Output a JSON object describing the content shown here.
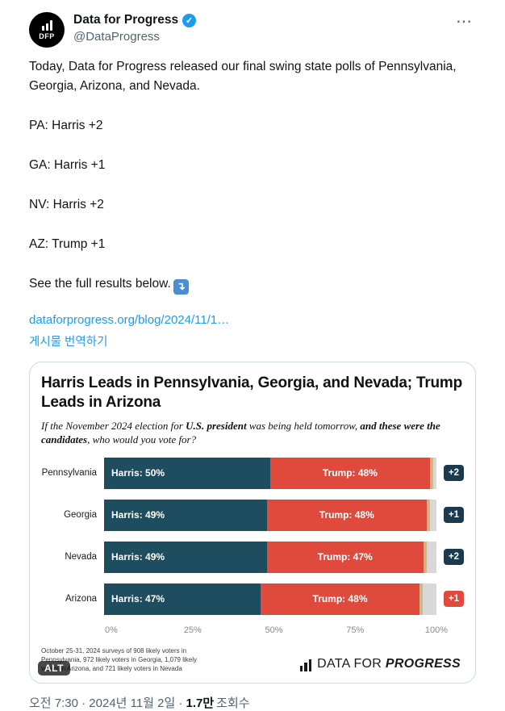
{
  "header": {
    "display_name": "Data for Progress",
    "handle": "@DataProgress",
    "avatar_label": "DFP"
  },
  "icons": {
    "verified": "✓",
    "more": "⋯",
    "arrow_emoji": "↴",
    "alt_badge": "ALT"
  },
  "tweet": {
    "intro": "Today, Data for Progress released our final swing state polls of Pennsylvania, Georgia, Arizona, and Nevada.",
    "poll_lines": [
      "PA: Harris +2",
      "GA: Harris +1",
      "NV: Harris +2",
      "AZ: Trump +1"
    ],
    "see_more": "See the full results below.",
    "link": "dataforprogress.org/blog/2024/11/1…",
    "translate": "게시물 번역하기"
  },
  "card": {
    "subtitle_segments": [
      {
        "text": "If the November 2024 election for ",
        "bold": false
      },
      {
        "text": "U.S. president",
        "bold": true
      },
      {
        "text": " was being held tomorrow, ",
        "bold": false
      },
      {
        "text": "and these were the candidates",
        "bold": true
      },
      {
        "text": ", who would you vote for?",
        "bold": false
      }
    ],
    "footnote_lines": [
      "October 25-31, 2024 surveys of 908 likely voters in",
      "Pennsylvania, 972 likely voters in Georgia, 1,079 likely",
      "voters in Arizona, and 721 likely voters in Nevada"
    ],
    "brand_prefix": "DATA FOR",
    "brand_suffix": "PROGRESS"
  },
  "chart_data": {
    "type": "bar",
    "orientation": "horizontal",
    "title": "Harris Leads in Pennsylvania, Georgia, and Nevada; Trump Leads in Arizona",
    "question": "If the November 2024 election for U.S. president was being held tomorrow, and these were the candidates, who would you vote for?",
    "categories": [
      "Pennsylvania",
      "Georgia",
      "Nevada",
      "Arizona"
    ],
    "rows": [
      {
        "state": "Pennsylvania",
        "harris": 50,
        "trump": 48,
        "other": 1,
        "undecided": 1,
        "margin": "+2",
        "leader": "Harris"
      },
      {
        "state": "Georgia",
        "harris": 49,
        "trump": 48,
        "other": 1,
        "undecided": 2,
        "margin": "+1",
        "leader": "Harris"
      },
      {
        "state": "Nevada",
        "harris": 49,
        "trump": 47,
        "other": 1,
        "undecided": 3,
        "margin": "+2",
        "leader": "Harris"
      },
      {
        "state": "Arizona",
        "harris": 47,
        "trump": 48,
        "other": 1,
        "undecided": 4,
        "margin": "+1",
        "leader": "Trump"
      }
    ],
    "colors": {
      "harris": "#1f4d60",
      "trump": "#df4a3c",
      "other": "#cbb98c",
      "undecided": "#d8d8d8",
      "harris_badge": "#1c3a4d",
      "trump_badge": "#df4a3c"
    },
    "x_ticks": [
      {
        "label": "0%",
        "pos": 0
      },
      {
        "label": "25%",
        "pos": 25
      },
      {
        "label": "50%",
        "pos": 50
      },
      {
        "label": "75%",
        "pos": 75
      },
      {
        "label": "100%",
        "pos": 100
      }
    ],
    "xlim": [
      0,
      100
    ],
    "legend_position": "none",
    "grid": false
  },
  "footer": {
    "time_date": "오전 7:30 · 2024년 11월 2일 ·",
    "views_count": "1.7만",
    "views_label": "조회수"
  }
}
